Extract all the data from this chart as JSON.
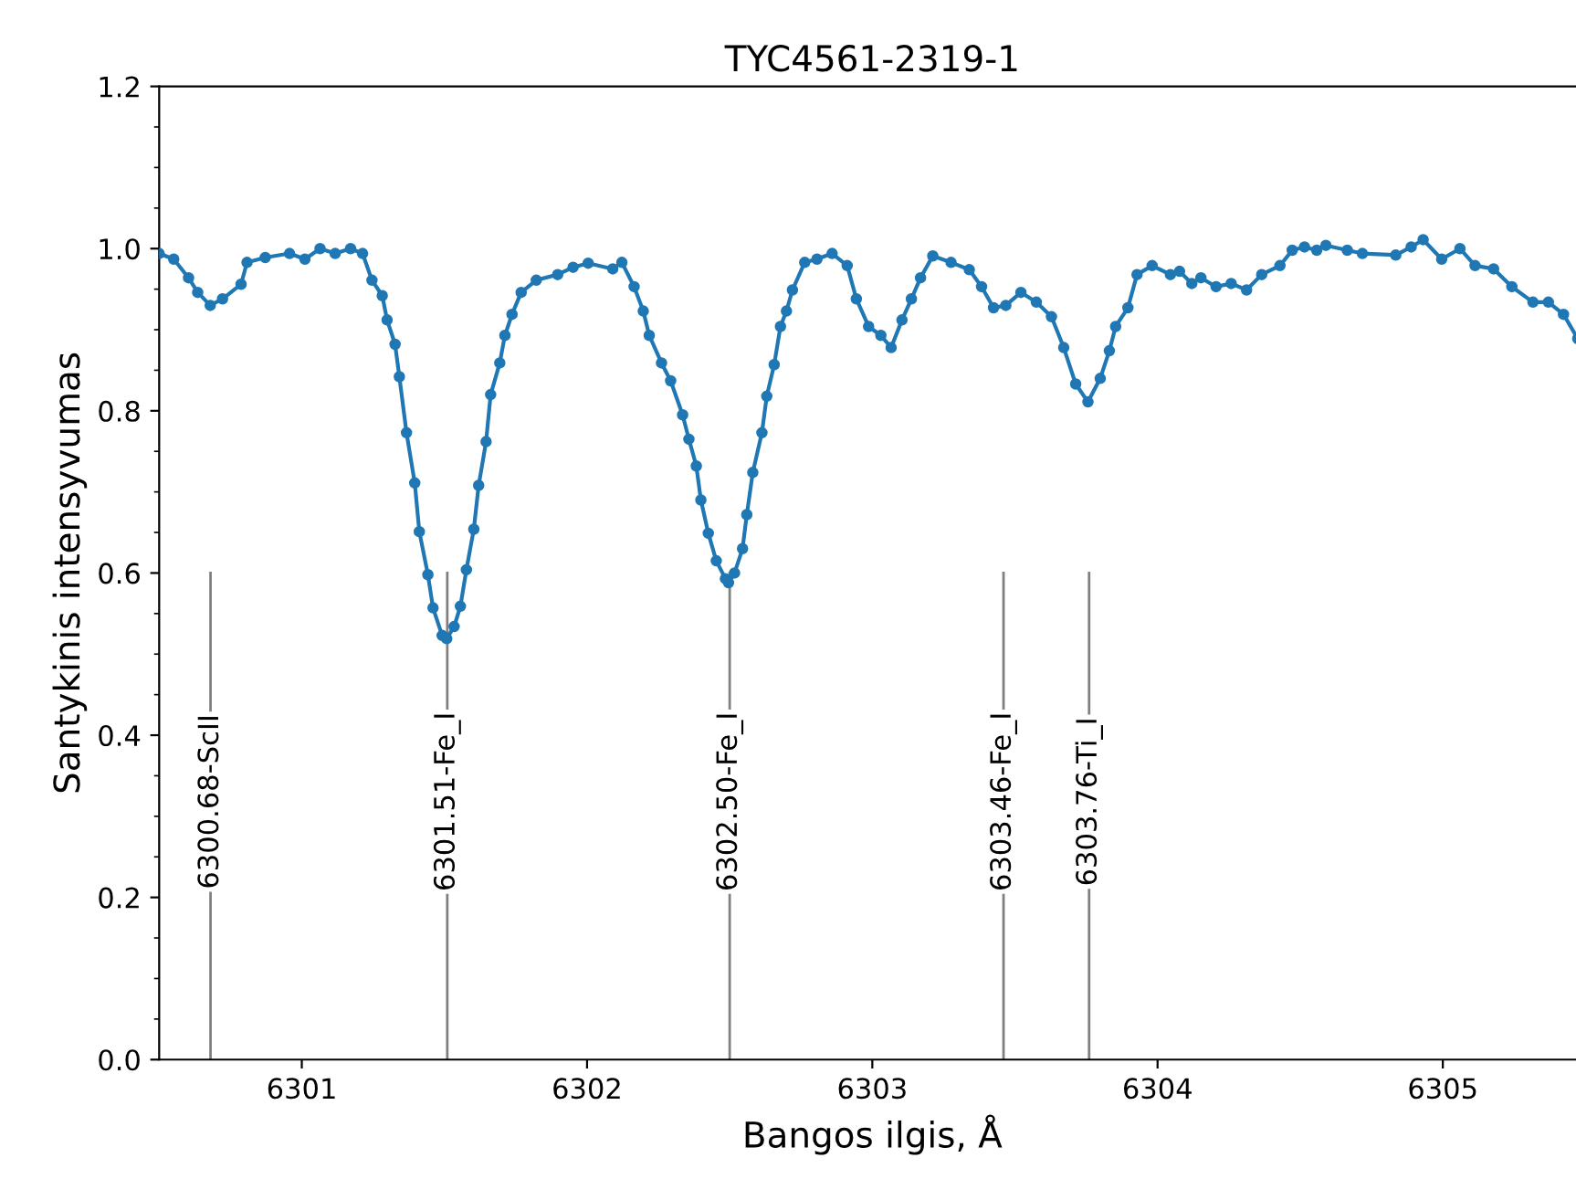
{
  "chart_data": {
    "type": "line",
    "title": "TYC4561-2319-1",
    "xlabel": "Bangos ilgis, Å",
    "ylabel": "Santykinis intensyvumas",
    "marker": "circle",
    "line_style": "solid",
    "grid": false,
    "legend": false,
    "xlim": [
      6300.5,
      6305.5
    ],
    "xticks": [
      6301,
      6302,
      6303,
      6304,
      6305
    ],
    "ylim": [
      0,
      1.2
    ],
    "yticks": [
      {
        "value": 0,
        "label": "0.0"
      },
      {
        "value": 0.2,
        "label": "0.2"
      },
      {
        "value": 0.4,
        "label": "0.4"
      },
      {
        "value": 0.6,
        "label": "0.6"
      },
      {
        "value": 0.8,
        "label": "0.8"
      },
      {
        "value": 1.0,
        "label": "1.0"
      },
      {
        "value": 1.2,
        "label": "1.2"
      }
    ],
    "ref_lines": [
      {
        "axis": "x",
        "value": 6300.68,
        "label": "6300.68-ScII",
        "color": "#808080"
      },
      {
        "axis": "x",
        "value": 6301.51,
        "label": "6301.51-Fe_I",
        "color": "#808080"
      },
      {
        "axis": "x",
        "value": 6302.5,
        "label": "6302.50-Fe_I",
        "color": "#808080"
      },
      {
        "axis": "x",
        "value": 6303.46,
        "label": "6303.46-Fe_I",
        "color": "#808080"
      },
      {
        "axis": "x",
        "value": 6303.76,
        "label": "6303.76-Ti_I",
        "color": "#808080"
      }
    ],
    "series": [
      {
        "color": "#1f77b4",
        "x": [
          6300.5,
          6300.551,
          6300.603,
          6300.635,
          6300.679,
          6300.722,
          6300.787,
          6300.808,
          6300.872,
          6300.957,
          6301.011,
          6301.064,
          6301.117,
          6301.171,
          6301.213,
          6301.246,
          6301.282,
          6301.299,
          6301.327,
          6301.342,
          6301.367,
          6301.396,
          6301.412,
          6301.442,
          6301.46,
          6301.492,
          6301.508,
          6301.534,
          6301.556,
          6301.577,
          6301.603,
          6301.62,
          6301.646,
          6301.662,
          6301.694,
          6301.712,
          6301.737,
          6301.769,
          6301.822,
          6301.897,
          6301.951,
          6302.004,
          6302.09,
          6302.122,
          6302.165,
          6302.197,
          6302.218,
          6302.261,
          6302.293,
          6302.335,
          6302.357,
          6302.383,
          6302.399,
          6302.425,
          6302.453,
          6302.485,
          6302.496,
          6302.517,
          6302.545,
          6302.56,
          6302.581,
          6302.613,
          6302.63,
          6302.656,
          6302.678,
          6302.699,
          6302.72,
          6302.763,
          6302.806,
          6302.859,
          6302.912,
          6302.944,
          6302.987,
          6303.03,
          6303.066,
          6303.104,
          6303.137,
          6303.169,
          6303.212,
          6303.276,
          6303.34,
          6303.383,
          6303.425,
          6303.468,
          6303.521,
          6303.575,
          6303.628,
          6303.671,
          6303.713,
          6303.756,
          6303.799,
          6303.831,
          6303.853,
          6303.896,
          6303.928,
          6303.981,
          6304.045,
          6304.077,
          6304.12,
          6304.152,
          6304.205,
          6304.258,
          6304.312,
          6304.365,
          6304.429,
          6304.472,
          6304.515,
          6304.558,
          6304.59,
          6304.665,
          6304.718,
          6304.835,
          6304.889,
          6304.931,
          6304.996,
          6305.06,
          6305.113,
          6305.178,
          6305.242,
          6305.316,
          6305.37,
          6305.423,
          6305.473
        ],
        "values": [
          0.994,
          0.987,
          0.964,
          0.946,
          0.93,
          0.938,
          0.956,
          0.983,
          0.989,
          0.994,
          0.987,
          1.0,
          0.994,
          1.0,
          0.994,
          0.961,
          0.942,
          0.912,
          0.882,
          0.842,
          0.773,
          0.711,
          0.651,
          0.598,
          0.557,
          0.523,
          0.519,
          0.534,
          0.559,
          0.604,
          0.654,
          0.708,
          0.762,
          0.82,
          0.859,
          0.893,
          0.919,
          0.946,
          0.961,
          0.968,
          0.977,
          0.982,
          0.975,
          0.983,
          0.953,
          0.923,
          0.893,
          0.859,
          0.837,
          0.795,
          0.765,
          0.732,
          0.69,
          0.649,
          0.615,
          0.593,
          0.588,
          0.6,
          0.63,
          0.672,
          0.724,
          0.773,
          0.818,
          0.857,
          0.904,
          0.923,
          0.949,
          0.983,
          0.987,
          0.994,
          0.979,
          0.938,
          0.904,
          0.893,
          0.878,
          0.912,
          0.938,
          0.964,
          0.991,
          0.983,
          0.974,
          0.953,
          0.927,
          0.93,
          0.946,
          0.934,
          0.916,
          0.878,
          0.833,
          0.811,
          0.84,
          0.874,
          0.904,
          0.927,
          0.968,
          0.979,
          0.968,
          0.972,
          0.957,
          0.964,
          0.953,
          0.957,
          0.949,
          0.968,
          0.979,
          0.998,
          1.002,
          0.998,
          1.004,
          0.998,
          0.994,
          0.992,
          1.002,
          1.011,
          0.987,
          1.0,
          0.979,
          0.975,
          0.953,
          0.934,
          0.934,
          0.919,
          0.889
        ]
      }
    ]
  }
}
